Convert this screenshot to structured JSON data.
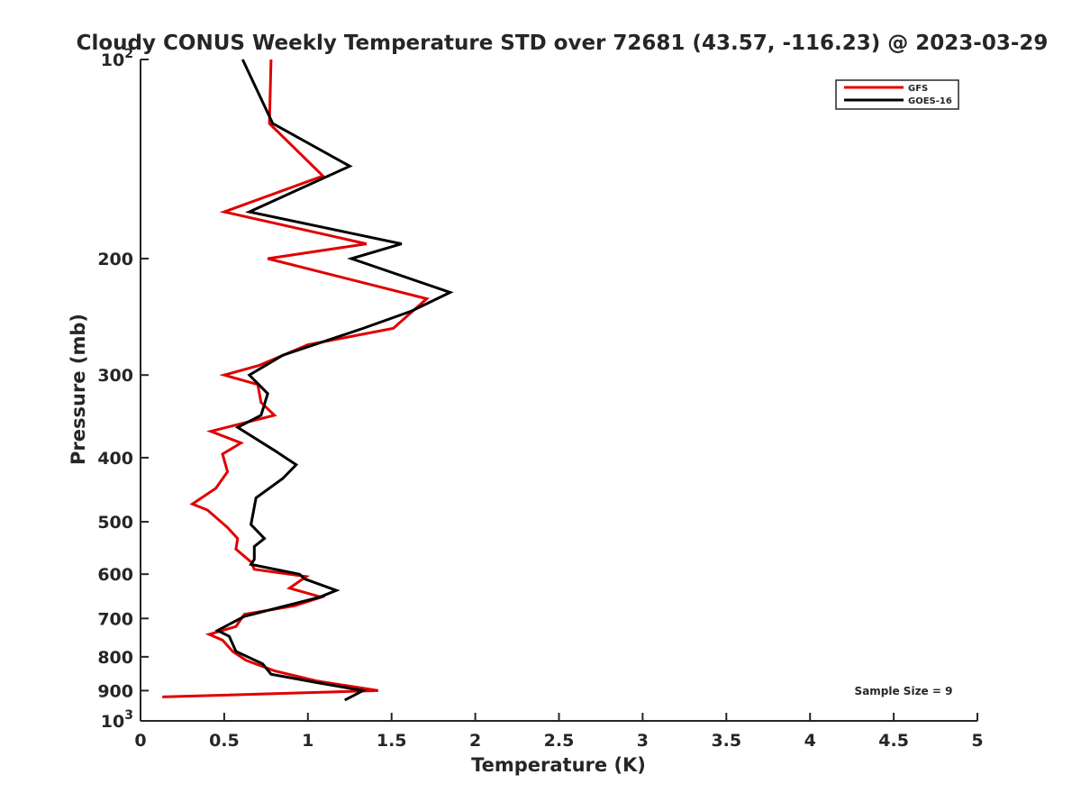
{
  "chart_data": {
    "type": "line",
    "title": "Cloudy CONUS Weekly Temperature STD over 72681 (43.57, -116.23) @ 2023-03-29",
    "xlabel": "Temperature (K)",
    "ylabel": "Pressure (mb)",
    "xlim": [
      0,
      5
    ],
    "ylim": [
      100,
      1000
    ],
    "y_scale": "log",
    "y_reversed": true,
    "x_ticks": [
      {
        "value": 0,
        "label": "0"
      },
      {
        "value": 0.5,
        "label": "0.5"
      },
      {
        "value": 1,
        "label": "1"
      },
      {
        "value": 1.5,
        "label": "1.5"
      },
      {
        "value": 2,
        "label": "2"
      },
      {
        "value": 2.5,
        "label": "2.5"
      },
      {
        "value": 3,
        "label": "3"
      },
      {
        "value": 3.5,
        "label": "3.5"
      },
      {
        "value": 4,
        "label": "4"
      },
      {
        "value": 4.5,
        "label": "4.5"
      },
      {
        "value": 5,
        "label": "5"
      }
    ],
    "y_ticks": [
      {
        "value": 100,
        "base": "10",
        "exp": "2"
      },
      {
        "value": 200,
        "label": "200"
      },
      {
        "value": 300,
        "label": "300"
      },
      {
        "value": 400,
        "label": "400"
      },
      {
        "value": 500,
        "label": "500"
      },
      {
        "value": 600,
        "label": "600"
      },
      {
        "value": 700,
        "label": "700"
      },
      {
        "value": 800,
        "label": "800"
      },
      {
        "value": 900,
        "label": "900"
      },
      {
        "value": 1000,
        "base": "10",
        "exp": "3"
      }
    ],
    "grid": false,
    "legend_position": "top-right",
    "annotation": "Sample Size = 9",
    "series": [
      {
        "name": "GFS",
        "color": "#e00000",
        "points": [
          [
            0.78,
            100
          ],
          [
            0.77,
            125
          ],
          [
            1.09,
            150
          ],
          [
            0.5,
            170
          ],
          [
            1.35,
            190
          ],
          [
            0.76,
            200
          ],
          [
            1.71,
            230
          ],
          [
            1.51,
            255
          ],
          [
            1.0,
            270
          ],
          [
            0.71,
            290
          ],
          [
            0.5,
            300
          ],
          [
            0.7,
            310
          ],
          [
            0.72,
            330
          ],
          [
            0.8,
            345
          ],
          [
            0.42,
            365
          ],
          [
            0.6,
            380
          ],
          [
            0.49,
            395
          ],
          [
            0.52,
            420
          ],
          [
            0.45,
            445
          ],
          [
            0.31,
            470
          ],
          [
            0.4,
            480
          ],
          [
            0.52,
            510
          ],
          [
            0.58,
            530
          ],
          [
            0.57,
            550
          ],
          [
            0.66,
            575
          ],
          [
            0.68,
            590
          ],
          [
            0.99,
            605
          ],
          [
            0.89,
            630
          ],
          [
            1.08,
            650
          ],
          [
            0.92,
            670
          ],
          [
            0.62,
            690
          ],
          [
            0.57,
            720
          ],
          [
            0.41,
            740
          ],
          [
            0.49,
            755
          ],
          [
            0.55,
            785
          ],
          [
            0.63,
            810
          ],
          [
            0.8,
            840
          ],
          [
            1.05,
            870
          ],
          [
            1.42,
            900
          ],
          [
            0.13,
            920
          ]
        ]
      },
      {
        "name": "GOES-16",
        "color": "#000000",
        "points": [
          [
            0.61,
            100
          ],
          [
            0.79,
            125
          ],
          [
            1.25,
            145
          ],
          [
            0.65,
            170
          ],
          [
            1.56,
            190
          ],
          [
            1.26,
            200
          ],
          [
            1.85,
            225
          ],
          [
            1.62,
            240
          ],
          [
            1.33,
            255
          ],
          [
            0.85,
            280
          ],
          [
            0.65,
            300
          ],
          [
            0.76,
            320
          ],
          [
            0.72,
            345
          ],
          [
            0.58,
            360
          ],
          [
            0.8,
            390
          ],
          [
            0.93,
            410
          ],
          [
            0.85,
            430
          ],
          [
            0.69,
            460
          ],
          [
            0.66,
            505
          ],
          [
            0.74,
            530
          ],
          [
            0.68,
            545
          ],
          [
            0.68,
            570
          ],
          [
            0.66,
            580
          ],
          [
            0.95,
            600
          ],
          [
            0.98,
            610
          ],
          [
            1.17,
            635
          ],
          [
            1.07,
            650
          ],
          [
            0.62,
            695
          ],
          [
            0.46,
            730
          ],
          [
            0.53,
            745
          ],
          [
            0.57,
            785
          ],
          [
            0.73,
            820
          ],
          [
            0.78,
            850
          ],
          [
            1.05,
            875
          ],
          [
            1.33,
            900
          ],
          [
            1.22,
            930
          ]
        ]
      }
    ]
  }
}
